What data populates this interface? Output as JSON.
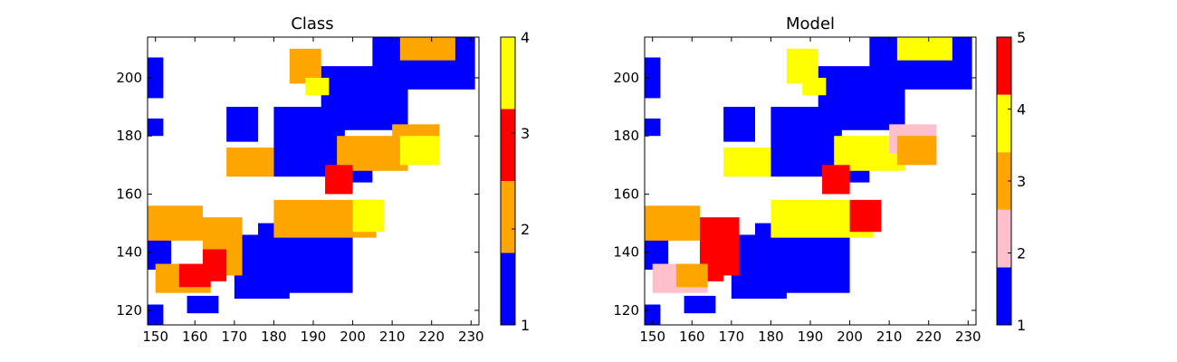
{
  "chart_data": [
    {
      "type": "heatmap",
      "title": "Class",
      "xlabel": "",
      "ylabel": "",
      "xlim": [
        148,
        232
      ],
      "ylim": [
        115,
        214
      ],
      "x_ticks": [
        150,
        160,
        170,
        180,
        190,
        200,
        210,
        220,
        230
      ],
      "y_ticks": [
        120,
        140,
        160,
        180,
        200
      ],
      "colorbar": {
        "levels": [
          1,
          2,
          3,
          4
        ],
        "colors": [
          "#0000ff",
          "#ffa500",
          "#ff0000",
          "#ffff00"
        ],
        "tick_labels": [
          "1",
          "2",
          "3",
          "4"
        ]
      },
      "regions_estimated": [
        {
          "class": 1,
          "x": [
            148,
            152
          ],
          "y": [
            193,
            207
          ]
        },
        {
          "class": 1,
          "x": [
            148,
            152
          ],
          "y": [
            180,
            186
          ]
        },
        {
          "class": 1,
          "x": [
            168,
            176
          ],
          "y": [
            178,
            190
          ]
        },
        {
          "class": 1,
          "x": [
            180,
            198
          ],
          "y": [
            166,
            190
          ]
        },
        {
          "class": 1,
          "x": [
            192,
            214
          ],
          "y": [
            182,
            204
          ]
        },
        {
          "class": 1,
          "x": [
            205,
            231
          ],
          "y": [
            196,
            214
          ]
        },
        {
          "class": 1,
          "x": [
            170,
            184
          ],
          "y": [
            124,
            146
          ]
        },
        {
          "class": 1,
          "x": [
            176,
            200
          ],
          "y": [
            126,
            150
          ]
        },
        {
          "class": 1,
          "x": [
            148,
            154
          ],
          "y": [
            134,
            146
          ]
        },
        {
          "class": 1,
          "x": [
            148,
            152
          ],
          "y": [
            115,
            122
          ]
        },
        {
          "class": 1,
          "x": [
            158,
            166
          ],
          "y": [
            119,
            125
          ]
        },
        {
          "class": 1,
          "x": [
            194,
            205
          ],
          "y": [
            164,
            174
          ]
        },
        {
          "class": 2,
          "x": [
            148,
            162
          ],
          "y": [
            144,
            156
          ]
        },
        {
          "class": 2,
          "x": [
            162,
            172
          ],
          "y": [
            132,
            152
          ]
        },
        {
          "class": 2,
          "x": [
            150,
            164
          ],
          "y": [
            126,
            136
          ]
        },
        {
          "class": 2,
          "x": [
            168,
            180
          ],
          "y": [
            166,
            176
          ]
        },
        {
          "class": 2,
          "x": [
            180,
            206
          ],
          "y": [
            145,
            158
          ]
        },
        {
          "class": 2,
          "x": [
            196,
            214
          ],
          "y": [
            168,
            180
          ]
        },
        {
          "class": 2,
          "x": [
            210,
            222
          ],
          "y": [
            174,
            184
          ]
        },
        {
          "class": 2,
          "x": [
            184,
            192
          ],
          "y": [
            198,
            210
          ]
        },
        {
          "class": 2,
          "x": [
            212,
            226
          ],
          "y": [
            206,
            214
          ]
        },
        {
          "class": 3,
          "x": [
            193,
            200
          ],
          "y": [
            160,
            170
          ]
        },
        {
          "class": 3,
          "x": [
            162,
            168
          ],
          "y": [
            130,
            141
          ]
        },
        {
          "class": 3,
          "x": [
            156,
            164
          ],
          "y": [
            128,
            136
          ]
        },
        {
          "class": 4,
          "x": [
            200,
            208
          ],
          "y": [
            147,
            158
          ]
        },
        {
          "class": 4,
          "x": [
            212,
            222
          ],
          "y": [
            170,
            180
          ]
        },
        {
          "class": 4,
          "x": [
            188,
            194
          ],
          "y": [
            194,
            200
          ]
        }
      ]
    },
    {
      "type": "heatmap",
      "title": "Model",
      "xlabel": "",
      "ylabel": "",
      "xlim": [
        148,
        232
      ],
      "ylim": [
        115,
        214
      ],
      "x_ticks": [
        150,
        160,
        170,
        180,
        190,
        200,
        210,
        220,
        230
      ],
      "y_ticks": [
        120,
        140,
        160,
        180,
        200
      ],
      "colorbar": {
        "levels": [
          1,
          2,
          3,
          4,
          5
        ],
        "colors": [
          "#0000ff",
          "#ffc0cb",
          "#ffa500",
          "#ffff00",
          "#ff0000"
        ],
        "tick_labels": [
          "1",
          "2",
          "3",
          "4",
          "5"
        ]
      },
      "regions_estimated": [
        {
          "class": 1,
          "x": [
            148,
            152
          ],
          "y": [
            193,
            207
          ]
        },
        {
          "class": 1,
          "x": [
            148,
            152
          ],
          "y": [
            180,
            186
          ]
        },
        {
          "class": 1,
          "x": [
            168,
            176
          ],
          "y": [
            178,
            190
          ]
        },
        {
          "class": 1,
          "x": [
            180,
            198
          ],
          "y": [
            166,
            190
          ]
        },
        {
          "class": 1,
          "x": [
            192,
            214
          ],
          "y": [
            182,
            204
          ]
        },
        {
          "class": 1,
          "x": [
            205,
            231
          ],
          "y": [
            196,
            214
          ]
        },
        {
          "class": 1,
          "x": [
            170,
            184
          ],
          "y": [
            124,
            146
          ]
        },
        {
          "class": 1,
          "x": [
            176,
            200
          ],
          "y": [
            126,
            150
          ]
        },
        {
          "class": 1,
          "x": [
            148,
            154
          ],
          "y": [
            134,
            146
          ]
        },
        {
          "class": 1,
          "x": [
            148,
            152
          ],
          "y": [
            115,
            122
          ]
        },
        {
          "class": 1,
          "x": [
            158,
            166
          ],
          "y": [
            119,
            125
          ]
        },
        {
          "class": 1,
          "x": [
            194,
            205
          ],
          "y": [
            164,
            174
          ]
        },
        {
          "class": 3,
          "x": [
            148,
            162
          ],
          "y": [
            144,
            156
          ]
        },
        {
          "class": 5,
          "x": [
            162,
            172
          ],
          "y": [
            132,
            152
          ]
        },
        {
          "class": 2,
          "x": [
            150,
            164
          ],
          "y": [
            126,
            136
          ]
        },
        {
          "class": 4,
          "x": [
            168,
            180
          ],
          "y": [
            166,
            176
          ]
        },
        {
          "class": 4,
          "x": [
            180,
            206
          ],
          "y": [
            145,
            158
          ]
        },
        {
          "class": 4,
          "x": [
            196,
            214
          ],
          "y": [
            168,
            180
          ]
        },
        {
          "class": 2,
          "x": [
            210,
            222
          ],
          "y": [
            174,
            184
          ]
        },
        {
          "class": 4,
          "x": [
            184,
            192
          ],
          "y": [
            198,
            210
          ]
        },
        {
          "class": 4,
          "x": [
            212,
            226
          ],
          "y": [
            206,
            214
          ]
        },
        {
          "class": 5,
          "x": [
            193,
            200
          ],
          "y": [
            160,
            170
          ]
        },
        {
          "class": 5,
          "x": [
            162,
            168
          ],
          "y": [
            130,
            141
          ]
        },
        {
          "class": 3,
          "x": [
            156,
            164
          ],
          "y": [
            128,
            136
          ]
        },
        {
          "class": 5,
          "x": [
            200,
            208
          ],
          "y": [
            147,
            158
          ]
        },
        {
          "class": 3,
          "x": [
            212,
            222
          ],
          "y": [
            170,
            180
          ]
        },
        {
          "class": 4,
          "x": [
            188,
            194
          ],
          "y": [
            194,
            200
          ]
        }
      ]
    }
  ]
}
